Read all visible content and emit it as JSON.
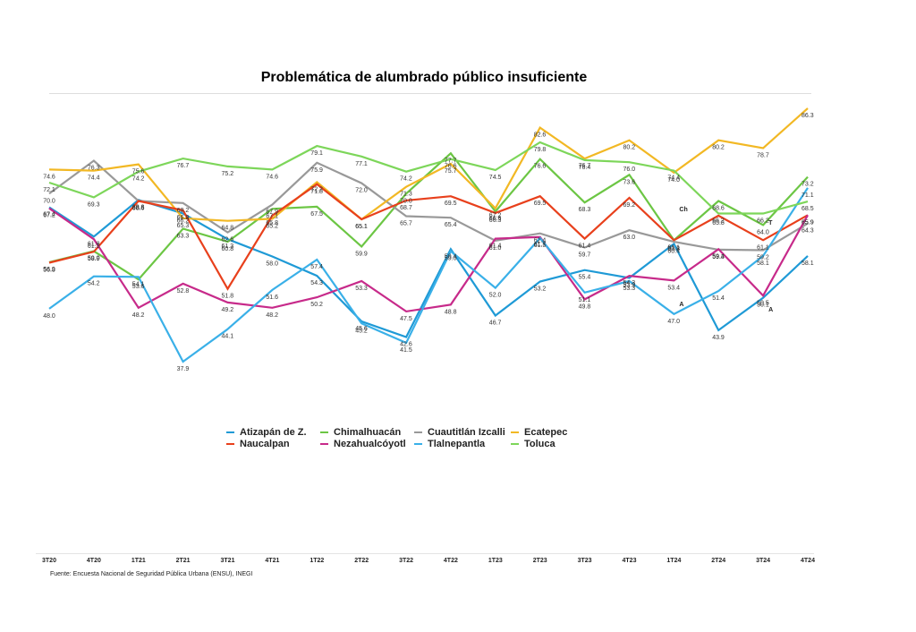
{
  "chart_data": {
    "type": "line",
    "title": "Problemática de alumbrado público insuficiente",
    "xlabel": "",
    "ylabel": "",
    "ylim": [
      37.9,
      86.3
    ],
    "grid": false,
    "legend_position": "bottom-center",
    "categories": [
      "3T20",
      "4T20",
      "1T21",
      "2T21",
      "3T21",
      "4T21",
      "1T22",
      "2T22",
      "3T22",
      "4T22",
      "1T23",
      "2T23",
      "3T23",
      "4T23",
      "1T24",
      "2T24",
      "3T24",
      "4T24"
    ],
    "series": [
      {
        "name": "Atizapán de Z.",
        "color": "#1f9ad6",
        "values": [
          67.4,
          61.8,
          68.8,
          66.2,
          61.3,
          58.0,
          54.3,
          45.6,
          42.6,
          59.4,
          46.7,
          53.2,
          55.4,
          53.9,
          60.4,
          43.9,
          50.1,
          58.1
        ]
      },
      {
        "name": "Chimalhuacán",
        "color": "#6cc644",
        "values": [
          56.9,
          59.0,
          53.6,
          63.3,
          60.8,
          67.1,
          67.5,
          59.9,
          70.0,
          77.7,
          66.6,
          76.6,
          68.3,
          73.6,
          61.1,
          68.6,
          64.0,
          73.2
        ]
      },
      {
        "name": "Cuautitlán Izcalli",
        "color": "#999999",
        "values": [
          70.0,
          76.3,
          68.6,
          68.2,
          62.6,
          67.9,
          75.9,
          72.0,
          65.7,
          65.4,
          61.0,
          62.4,
          59.7,
          63.0,
          60.8,
          59.3,
          59.2,
          64.3
        ]
      },
      {
        "name": "Ecatepec",
        "color": "#f2b824",
        "values": [
          74.6,
          74.4,
          75.6,
          65.3,
          64.8,
          65.2,
          72.2,
          65.1,
          71.3,
          75.7,
          67.2,
          82.6,
          76.7,
          80.2,
          74.0,
          80.2,
          78.7,
          86.3
        ]
      },
      {
        "name": "Naucalpan",
        "color": "#e8401c",
        "values": [
          56.8,
          58.9,
          68.6,
          66.8,
          51.8,
          65.8,
          71.8,
          65.1,
          68.7,
          69.5,
          66.3,
          69.5,
          61.4,
          69.2,
          61.1,
          65.8,
          61.1,
          65.9
        ]
      },
      {
        "name": "Nezahualcóyotl",
        "color": "#c72a8a",
        "values": [
          67.2,
          61.3,
          48.2,
          52.8,
          49.2,
          48.2,
          50.2,
          53.3,
          47.5,
          48.8,
          61.4,
          61.7,
          49.8,
          54.3,
          53.4,
          59.4,
          50.5,
          65.9
        ]
      },
      {
        "name": "Tlalnepantla",
        "color": "#3ab0e8",
        "values": [
          48.0,
          54.2,
          54.1,
          37.9,
          44.1,
          51.6,
          57.4,
          45.2,
          41.5,
          59.0,
          52.0,
          61.5,
          51.1,
          53.3,
          47.0,
          51.4,
          58.1,
          71.1
        ]
      },
      {
        "name": "Toluca",
        "color": "#7dd65a",
        "values": [
          72.1,
          69.3,
          74.2,
          76.7,
          75.2,
          74.6,
          79.1,
          77.1,
          74.2,
          76.6,
          74.5,
          79.8,
          76.4,
          76.0,
          74.4,
          66.2,
          66.2,
          68.5
        ]
      }
    ],
    "annotations": [
      {
        "text": "Ch",
        "category": "1T24",
        "value": 66.6
      },
      {
        "text": "A",
        "category": "1T24",
        "value": 48.5
      },
      {
        "text": "T",
        "category": "3T24",
        "value": 64.1
      },
      {
        "text": "A",
        "category": "3T24",
        "value": 47.5
      }
    ],
    "source": "Fuente: Encuesta Nacional de Seguridad Pública Urbana (ENSU), INEGI"
  }
}
